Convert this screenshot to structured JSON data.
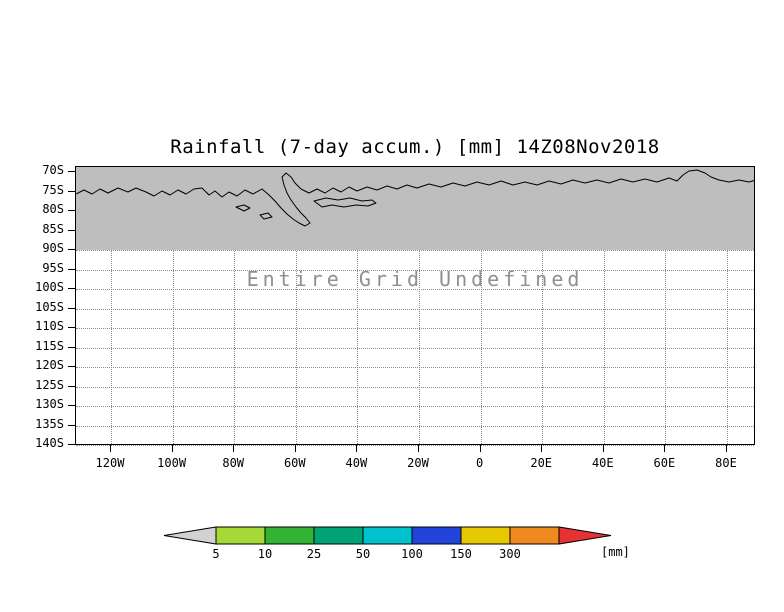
{
  "figure": {
    "title": "Rainfall (7-day accum.) [mm] 14Z08Nov2018",
    "undefined_text": "Entire Grid Undefined",
    "shade_color": "#bebebe"
  },
  "y_axis": {
    "tick_labels": [
      "70S",
      "75S",
      "80S",
      "85S",
      "90S",
      "95S",
      "100S",
      "105S",
      "110S",
      "115S",
      "120S",
      "125S",
      "130S",
      "135S",
      "140S"
    ]
  },
  "x_axis": {
    "tick_labels": [
      "120W",
      "100W",
      "80W",
      "60W",
      "40W",
      "20W",
      "0",
      "20E",
      "40E",
      "60E",
      "80E"
    ]
  },
  "colorbar": {
    "unit_label": "[mm]",
    "below_min_color": "#d2d2d2",
    "above_max_color": "#e63232",
    "segments": [
      {
        "label": "5",
        "color": "#a6d936"
      },
      {
        "label": "10",
        "color": "#33b333"
      },
      {
        "label": "25",
        "color": "#00a376"
      },
      {
        "label": "50",
        "color": "#00c2cc"
      },
      {
        "label": "100",
        "color": "#2244dd"
      },
      {
        "label": "150",
        "color": "#e6c800"
      },
      {
        "label": "300",
        "color": "#ef8a1f"
      }
    ]
  },
  "chart_data": {
    "type": "heatmap",
    "title": "Rainfall (7-day accum.) [mm] 14Z08Nov2018",
    "x_tick_labels": [
      "120W",
      "100W",
      "80W",
      "60W",
      "40W",
      "20W",
      "0",
      "20E",
      "40E",
      "60E",
      "80E"
    ],
    "y_tick_labels": [
      "70S",
      "75S",
      "80S",
      "85S",
      "90S",
      "95S",
      "100S",
      "105S",
      "110S",
      "115S",
      "120S",
      "125S",
      "130S",
      "135S",
      "140S"
    ],
    "values": "undefined",
    "annotation": "Entire Grid Undefined",
    "shaded_band": {
      "y_from": "70S",
      "y_to": "90S",
      "color": "#bebebe"
    },
    "colorbar_levels": [
      5,
      10,
      25,
      50,
      100,
      150,
      300
    ],
    "colorbar_unit": "mm",
    "grid": true,
    "legend_position": "bottom"
  }
}
